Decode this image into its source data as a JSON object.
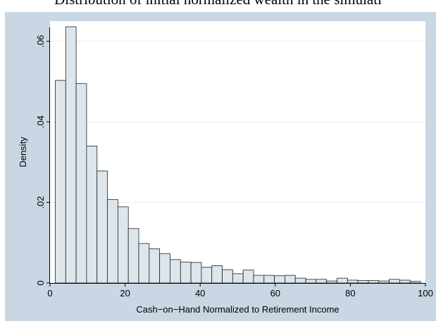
{
  "title": "Distribution of initial normalized wealth in the simulati",
  "chart_data": {
    "type": "bar",
    "title": "Distribution of initial normalized wealth in the simulati",
    "xlabel": "Cash−on−Hand Normalized to Retirement Income",
    "ylabel": "Density",
    "xlim": [
      0,
      100
    ],
    "ylim": [
      0,
      0.065
    ],
    "xticks": [
      0,
      20,
      40,
      60,
      80,
      100
    ],
    "xtick_labels": [
      "0",
      "20",
      "40",
      "60",
      "80",
      "100"
    ],
    "yticks": [
      0,
      0.02,
      0.04,
      0.06
    ],
    "ytick_labels": [
      "0",
      ".02",
      ".04",
      ".06"
    ],
    "grid": true,
    "bin_width": 2.78,
    "bin_start": 1.4,
    "values": [
      0.0503,
      0.0636,
      0.0495,
      0.034,
      0.0278,
      0.0207,
      0.0189,
      0.0135,
      0.0098,
      0.0085,
      0.0073,
      0.0058,
      0.0052,
      0.0051,
      0.0039,
      0.0043,
      0.0033,
      0.0023,
      0.0032,
      0.0019,
      0.0019,
      0.0018,
      0.0019,
      0.0012,
      0.0009,
      0.0009,
      0.0005,
      0.0012,
      0.0007,
      0.0006,
      0.0006,
      0.0005,
      0.0009,
      0.0007,
      0.0004
    ],
    "colors": {
      "bar_fill": "#dce6ec",
      "bar_edge": "#222222",
      "plot_bg": "#ffffff",
      "panel_bg": "#c9d6e3",
      "grid": "#e6ecf2"
    }
  }
}
